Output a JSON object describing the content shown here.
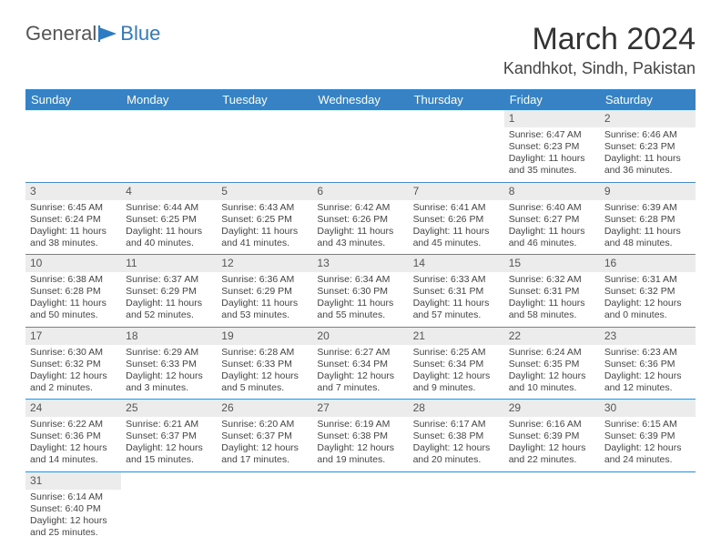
{
  "logo": {
    "text1": "General",
    "text2": "Blue"
  },
  "title": "March 2024",
  "location": "Kandhkot, Sindh, Pakistan",
  "colors": {
    "header_bg": "#3782c4",
    "header_fg": "#ffffff",
    "rule": "#4a8cc9",
    "daynum_bg": "#ececec",
    "logo_blue": "#2d7bc0"
  },
  "weekdays": [
    "Sunday",
    "Monday",
    "Tuesday",
    "Wednesday",
    "Thursday",
    "Friday",
    "Saturday"
  ],
  "weeks": [
    [
      null,
      null,
      null,
      null,
      null,
      {
        "n": "1",
        "sr": "Sunrise: 6:47 AM",
        "ss": "Sunset: 6:23 PM",
        "d1": "Daylight: 11 hours",
        "d2": "and 35 minutes."
      },
      {
        "n": "2",
        "sr": "Sunrise: 6:46 AM",
        "ss": "Sunset: 6:23 PM",
        "d1": "Daylight: 11 hours",
        "d2": "and 36 minutes."
      }
    ],
    [
      {
        "n": "3",
        "sr": "Sunrise: 6:45 AM",
        "ss": "Sunset: 6:24 PM",
        "d1": "Daylight: 11 hours",
        "d2": "and 38 minutes."
      },
      {
        "n": "4",
        "sr": "Sunrise: 6:44 AM",
        "ss": "Sunset: 6:25 PM",
        "d1": "Daylight: 11 hours",
        "d2": "and 40 minutes."
      },
      {
        "n": "5",
        "sr": "Sunrise: 6:43 AM",
        "ss": "Sunset: 6:25 PM",
        "d1": "Daylight: 11 hours",
        "d2": "and 41 minutes."
      },
      {
        "n": "6",
        "sr": "Sunrise: 6:42 AM",
        "ss": "Sunset: 6:26 PM",
        "d1": "Daylight: 11 hours",
        "d2": "and 43 minutes."
      },
      {
        "n": "7",
        "sr": "Sunrise: 6:41 AM",
        "ss": "Sunset: 6:26 PM",
        "d1": "Daylight: 11 hours",
        "d2": "and 45 minutes."
      },
      {
        "n": "8",
        "sr": "Sunrise: 6:40 AM",
        "ss": "Sunset: 6:27 PM",
        "d1": "Daylight: 11 hours",
        "d2": "and 46 minutes."
      },
      {
        "n": "9",
        "sr": "Sunrise: 6:39 AM",
        "ss": "Sunset: 6:28 PM",
        "d1": "Daylight: 11 hours",
        "d2": "and 48 minutes."
      }
    ],
    [
      {
        "n": "10",
        "sr": "Sunrise: 6:38 AM",
        "ss": "Sunset: 6:28 PM",
        "d1": "Daylight: 11 hours",
        "d2": "and 50 minutes."
      },
      {
        "n": "11",
        "sr": "Sunrise: 6:37 AM",
        "ss": "Sunset: 6:29 PM",
        "d1": "Daylight: 11 hours",
        "d2": "and 52 minutes."
      },
      {
        "n": "12",
        "sr": "Sunrise: 6:36 AM",
        "ss": "Sunset: 6:29 PM",
        "d1": "Daylight: 11 hours",
        "d2": "and 53 minutes."
      },
      {
        "n": "13",
        "sr": "Sunrise: 6:34 AM",
        "ss": "Sunset: 6:30 PM",
        "d1": "Daylight: 11 hours",
        "d2": "and 55 minutes."
      },
      {
        "n": "14",
        "sr": "Sunrise: 6:33 AM",
        "ss": "Sunset: 6:31 PM",
        "d1": "Daylight: 11 hours",
        "d2": "and 57 minutes."
      },
      {
        "n": "15",
        "sr": "Sunrise: 6:32 AM",
        "ss": "Sunset: 6:31 PM",
        "d1": "Daylight: 11 hours",
        "d2": "and 58 minutes."
      },
      {
        "n": "16",
        "sr": "Sunrise: 6:31 AM",
        "ss": "Sunset: 6:32 PM",
        "d1": "Daylight: 12 hours",
        "d2": "and 0 minutes."
      }
    ],
    [
      {
        "n": "17",
        "sr": "Sunrise: 6:30 AM",
        "ss": "Sunset: 6:32 PM",
        "d1": "Daylight: 12 hours",
        "d2": "and 2 minutes."
      },
      {
        "n": "18",
        "sr": "Sunrise: 6:29 AM",
        "ss": "Sunset: 6:33 PM",
        "d1": "Daylight: 12 hours",
        "d2": "and 3 minutes."
      },
      {
        "n": "19",
        "sr": "Sunrise: 6:28 AM",
        "ss": "Sunset: 6:33 PM",
        "d1": "Daylight: 12 hours",
        "d2": "and 5 minutes."
      },
      {
        "n": "20",
        "sr": "Sunrise: 6:27 AM",
        "ss": "Sunset: 6:34 PM",
        "d1": "Daylight: 12 hours",
        "d2": "and 7 minutes."
      },
      {
        "n": "21",
        "sr": "Sunrise: 6:25 AM",
        "ss": "Sunset: 6:34 PM",
        "d1": "Daylight: 12 hours",
        "d2": "and 9 minutes."
      },
      {
        "n": "22",
        "sr": "Sunrise: 6:24 AM",
        "ss": "Sunset: 6:35 PM",
        "d1": "Daylight: 12 hours",
        "d2": "and 10 minutes."
      },
      {
        "n": "23",
        "sr": "Sunrise: 6:23 AM",
        "ss": "Sunset: 6:36 PM",
        "d1": "Daylight: 12 hours",
        "d2": "and 12 minutes."
      }
    ],
    [
      {
        "n": "24",
        "sr": "Sunrise: 6:22 AM",
        "ss": "Sunset: 6:36 PM",
        "d1": "Daylight: 12 hours",
        "d2": "and 14 minutes."
      },
      {
        "n": "25",
        "sr": "Sunrise: 6:21 AM",
        "ss": "Sunset: 6:37 PM",
        "d1": "Daylight: 12 hours",
        "d2": "and 15 minutes."
      },
      {
        "n": "26",
        "sr": "Sunrise: 6:20 AM",
        "ss": "Sunset: 6:37 PM",
        "d1": "Daylight: 12 hours",
        "d2": "and 17 minutes."
      },
      {
        "n": "27",
        "sr": "Sunrise: 6:19 AM",
        "ss": "Sunset: 6:38 PM",
        "d1": "Daylight: 12 hours",
        "d2": "and 19 minutes."
      },
      {
        "n": "28",
        "sr": "Sunrise: 6:17 AM",
        "ss": "Sunset: 6:38 PM",
        "d1": "Daylight: 12 hours",
        "d2": "and 20 minutes."
      },
      {
        "n": "29",
        "sr": "Sunrise: 6:16 AM",
        "ss": "Sunset: 6:39 PM",
        "d1": "Daylight: 12 hours",
        "d2": "and 22 minutes."
      },
      {
        "n": "30",
        "sr": "Sunrise: 6:15 AM",
        "ss": "Sunset: 6:39 PM",
        "d1": "Daylight: 12 hours",
        "d2": "and 24 minutes."
      }
    ],
    [
      {
        "n": "31",
        "sr": "Sunrise: 6:14 AM",
        "ss": "Sunset: 6:40 PM",
        "d1": "Daylight: 12 hours",
        "d2": "and 25 minutes."
      },
      null,
      null,
      null,
      null,
      null,
      null
    ]
  ]
}
